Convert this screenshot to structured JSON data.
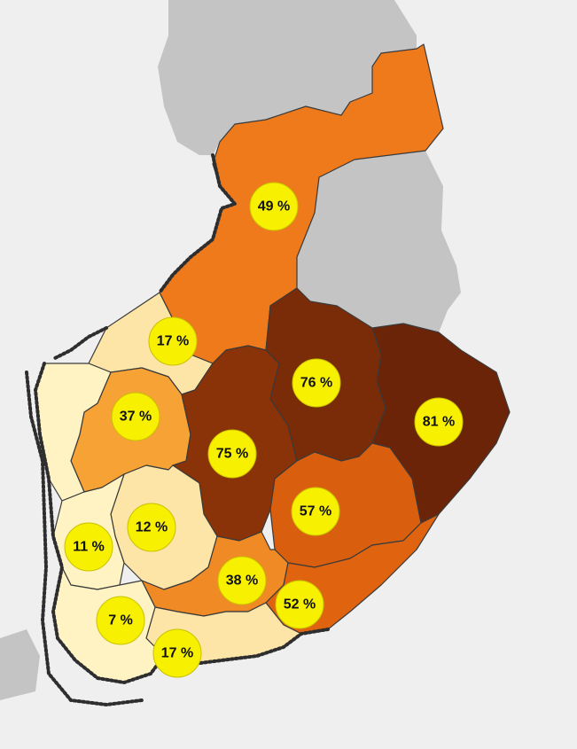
{
  "map": {
    "colors": {
      "background": "#efefef",
      "neighbor": "#c4c4c4",
      "bubble_fill": "#f7f000",
      "scale": [
        "#fff3c4",
        "#fde5a8",
        "#f7a235",
        "#ef7a1c",
        "#d95f0e",
        "#8a3208",
        "#6b2408"
      ]
    },
    "regions": [
      {
        "id": "lapland-south",
        "value": "49 %"
      },
      {
        "id": "central-north-west",
        "value": "17 %"
      },
      {
        "id": "south-ostrobothnia",
        "value": "37 %"
      },
      {
        "id": "central-finland",
        "value": "75 %"
      },
      {
        "id": "north-savo",
        "value": "76 %"
      },
      {
        "id": "north-karelia",
        "value": "81 %"
      },
      {
        "id": "south-savo",
        "value": "57 %"
      },
      {
        "id": "pirkanmaa",
        "value": "12 %"
      },
      {
        "id": "satakunta",
        "value": "11 %"
      },
      {
        "id": "paijat-hame",
        "value": "38 %"
      },
      {
        "id": "kymenlaakso",
        "value": "52 %"
      },
      {
        "id": "southwest-finland",
        "value": "7 %"
      },
      {
        "id": "uusimaa",
        "value": "17 %"
      }
    ]
  }
}
